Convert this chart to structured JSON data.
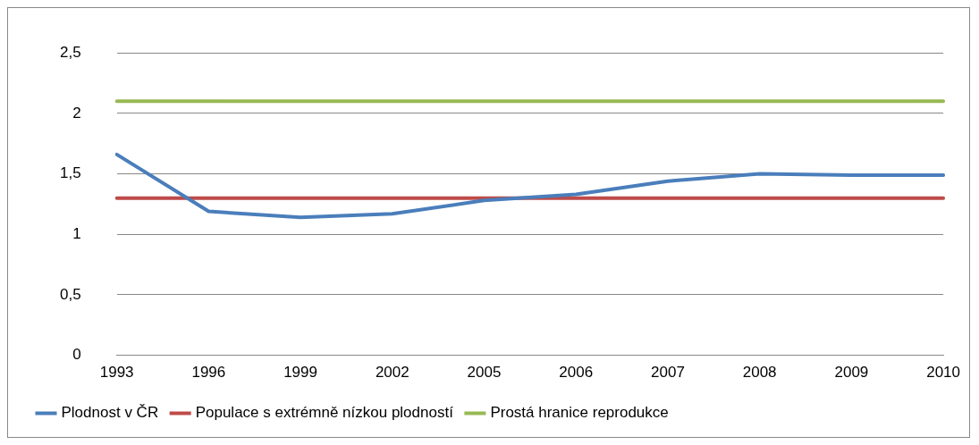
{
  "chart_data": {
    "type": "line",
    "categories": [
      "1993",
      "1996",
      "1999",
      "2002",
      "2005",
      "2006",
      "2007",
      "2008",
      "2009",
      "2010"
    ],
    "series": [
      {
        "name": "Plodnost v ČR",
        "color": "#4a7ebb",
        "values": [
          1.66,
          1.19,
          1.14,
          1.17,
          1.28,
          1.33,
          1.44,
          1.5,
          1.49,
          1.49
        ]
      },
      {
        "name": "Populace s extrémně nízkou plodností",
        "color": "#be4b48",
        "values": [
          1.3,
          1.3,
          1.3,
          1.3,
          1.3,
          1.3,
          1.3,
          1.3,
          1.3,
          1.3
        ]
      },
      {
        "name": "Prostá hranice reprodukce",
        "color": "#98b954",
        "values": [
          2.1,
          2.1,
          2.1,
          2.1,
          2.1,
          2.1,
          2.1,
          2.1,
          2.1,
          2.1
        ]
      }
    ],
    "ylim": [
      0,
      2.5
    ],
    "yticks": [
      {
        "value": 0,
        "label": "0"
      },
      {
        "value": 0.5,
        "label": "0,5"
      },
      {
        "value": 1,
        "label": "1"
      },
      {
        "value": 1.5,
        "label": "1,5"
      },
      {
        "value": 2,
        "label": "2"
      },
      {
        "value": 2.5,
        "label": "2,5"
      }
    ],
    "grid": "y",
    "legend": "bottom",
    "marker": "none",
    "line_style": "solid"
  }
}
